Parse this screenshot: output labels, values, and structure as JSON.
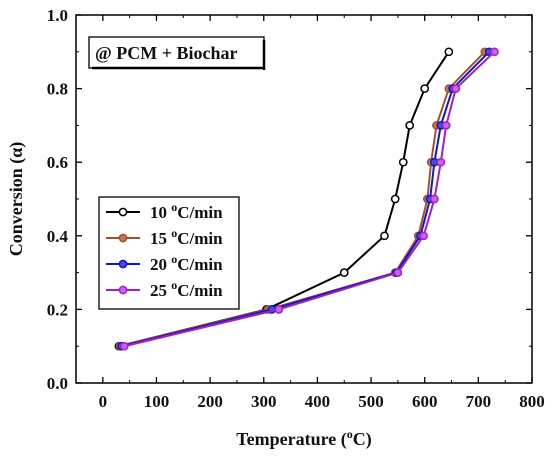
{
  "chart_data": {
    "type": "line",
    "title": "",
    "annotation": "@ PCM + Biochar",
    "xlabel": {
      "prefix": "Temperature (",
      "sup": "o",
      "suffix": "C)"
    },
    "ylabel": "Conversion (α)",
    "xlim": [
      -50,
      800
    ],
    "ylim": [
      0.0,
      1.0
    ],
    "xticks": [
      0,
      100,
      200,
      300,
      400,
      500,
      600,
      700,
      800
    ],
    "yticks": [
      0.0,
      0.2,
      0.4,
      0.6,
      0.8,
      1.0
    ],
    "ytick_labels": [
      "0.0",
      "0.2",
      "0.4",
      "0.6",
      "0.8",
      "1.0"
    ],
    "legend_position": "left-middle",
    "series": [
      {
        "name": "10 oC/min",
        "rate": "10",
        "unit_sup": "o",
        "unit_rest": "C/min",
        "color": "#000000",
        "fill": "#ffffff",
        "x": [
          30,
          305,
          450,
          525,
          545,
          560,
          572,
          600,
          645
        ],
        "y": [
          0.1,
          0.2,
          0.3,
          0.4,
          0.5,
          0.6,
          0.7,
          0.8,
          0.9
        ]
      },
      {
        "name": "15 oC/min",
        "rate": "15",
        "unit_sup": "o",
        "unit_rest": "C/min",
        "color": "#a0522d",
        "fill": "#c87850",
        "x": [
          32,
          308,
          545,
          588,
          605,
          612,
          622,
          645,
          712
        ],
        "y": [
          0.1,
          0.2,
          0.3,
          0.4,
          0.5,
          0.6,
          0.7,
          0.8,
          0.9
        ]
      },
      {
        "name": "20 oC/min",
        "rate": "20",
        "unit_sup": "o",
        "unit_rest": "C/min",
        "color": "#1515c8",
        "fill": "#4a4ae0",
        "x": [
          35,
          315,
          547,
          592,
          610,
          618,
          630,
          652,
          720
        ],
        "y": [
          0.1,
          0.2,
          0.3,
          0.4,
          0.5,
          0.6,
          0.7,
          0.8,
          0.9
        ]
      },
      {
        "name": "25 oC/min",
        "rate": "25",
        "unit_sup": "o",
        "unit_rest": "C/min",
        "color": "#a020c8",
        "fill": "#d060f0",
        "x": [
          40,
          328,
          550,
          598,
          618,
          630,
          640,
          658,
          730
        ],
        "y": [
          0.1,
          0.2,
          0.3,
          0.4,
          0.5,
          0.6,
          0.7,
          0.8,
          0.9
        ]
      }
    ]
  }
}
